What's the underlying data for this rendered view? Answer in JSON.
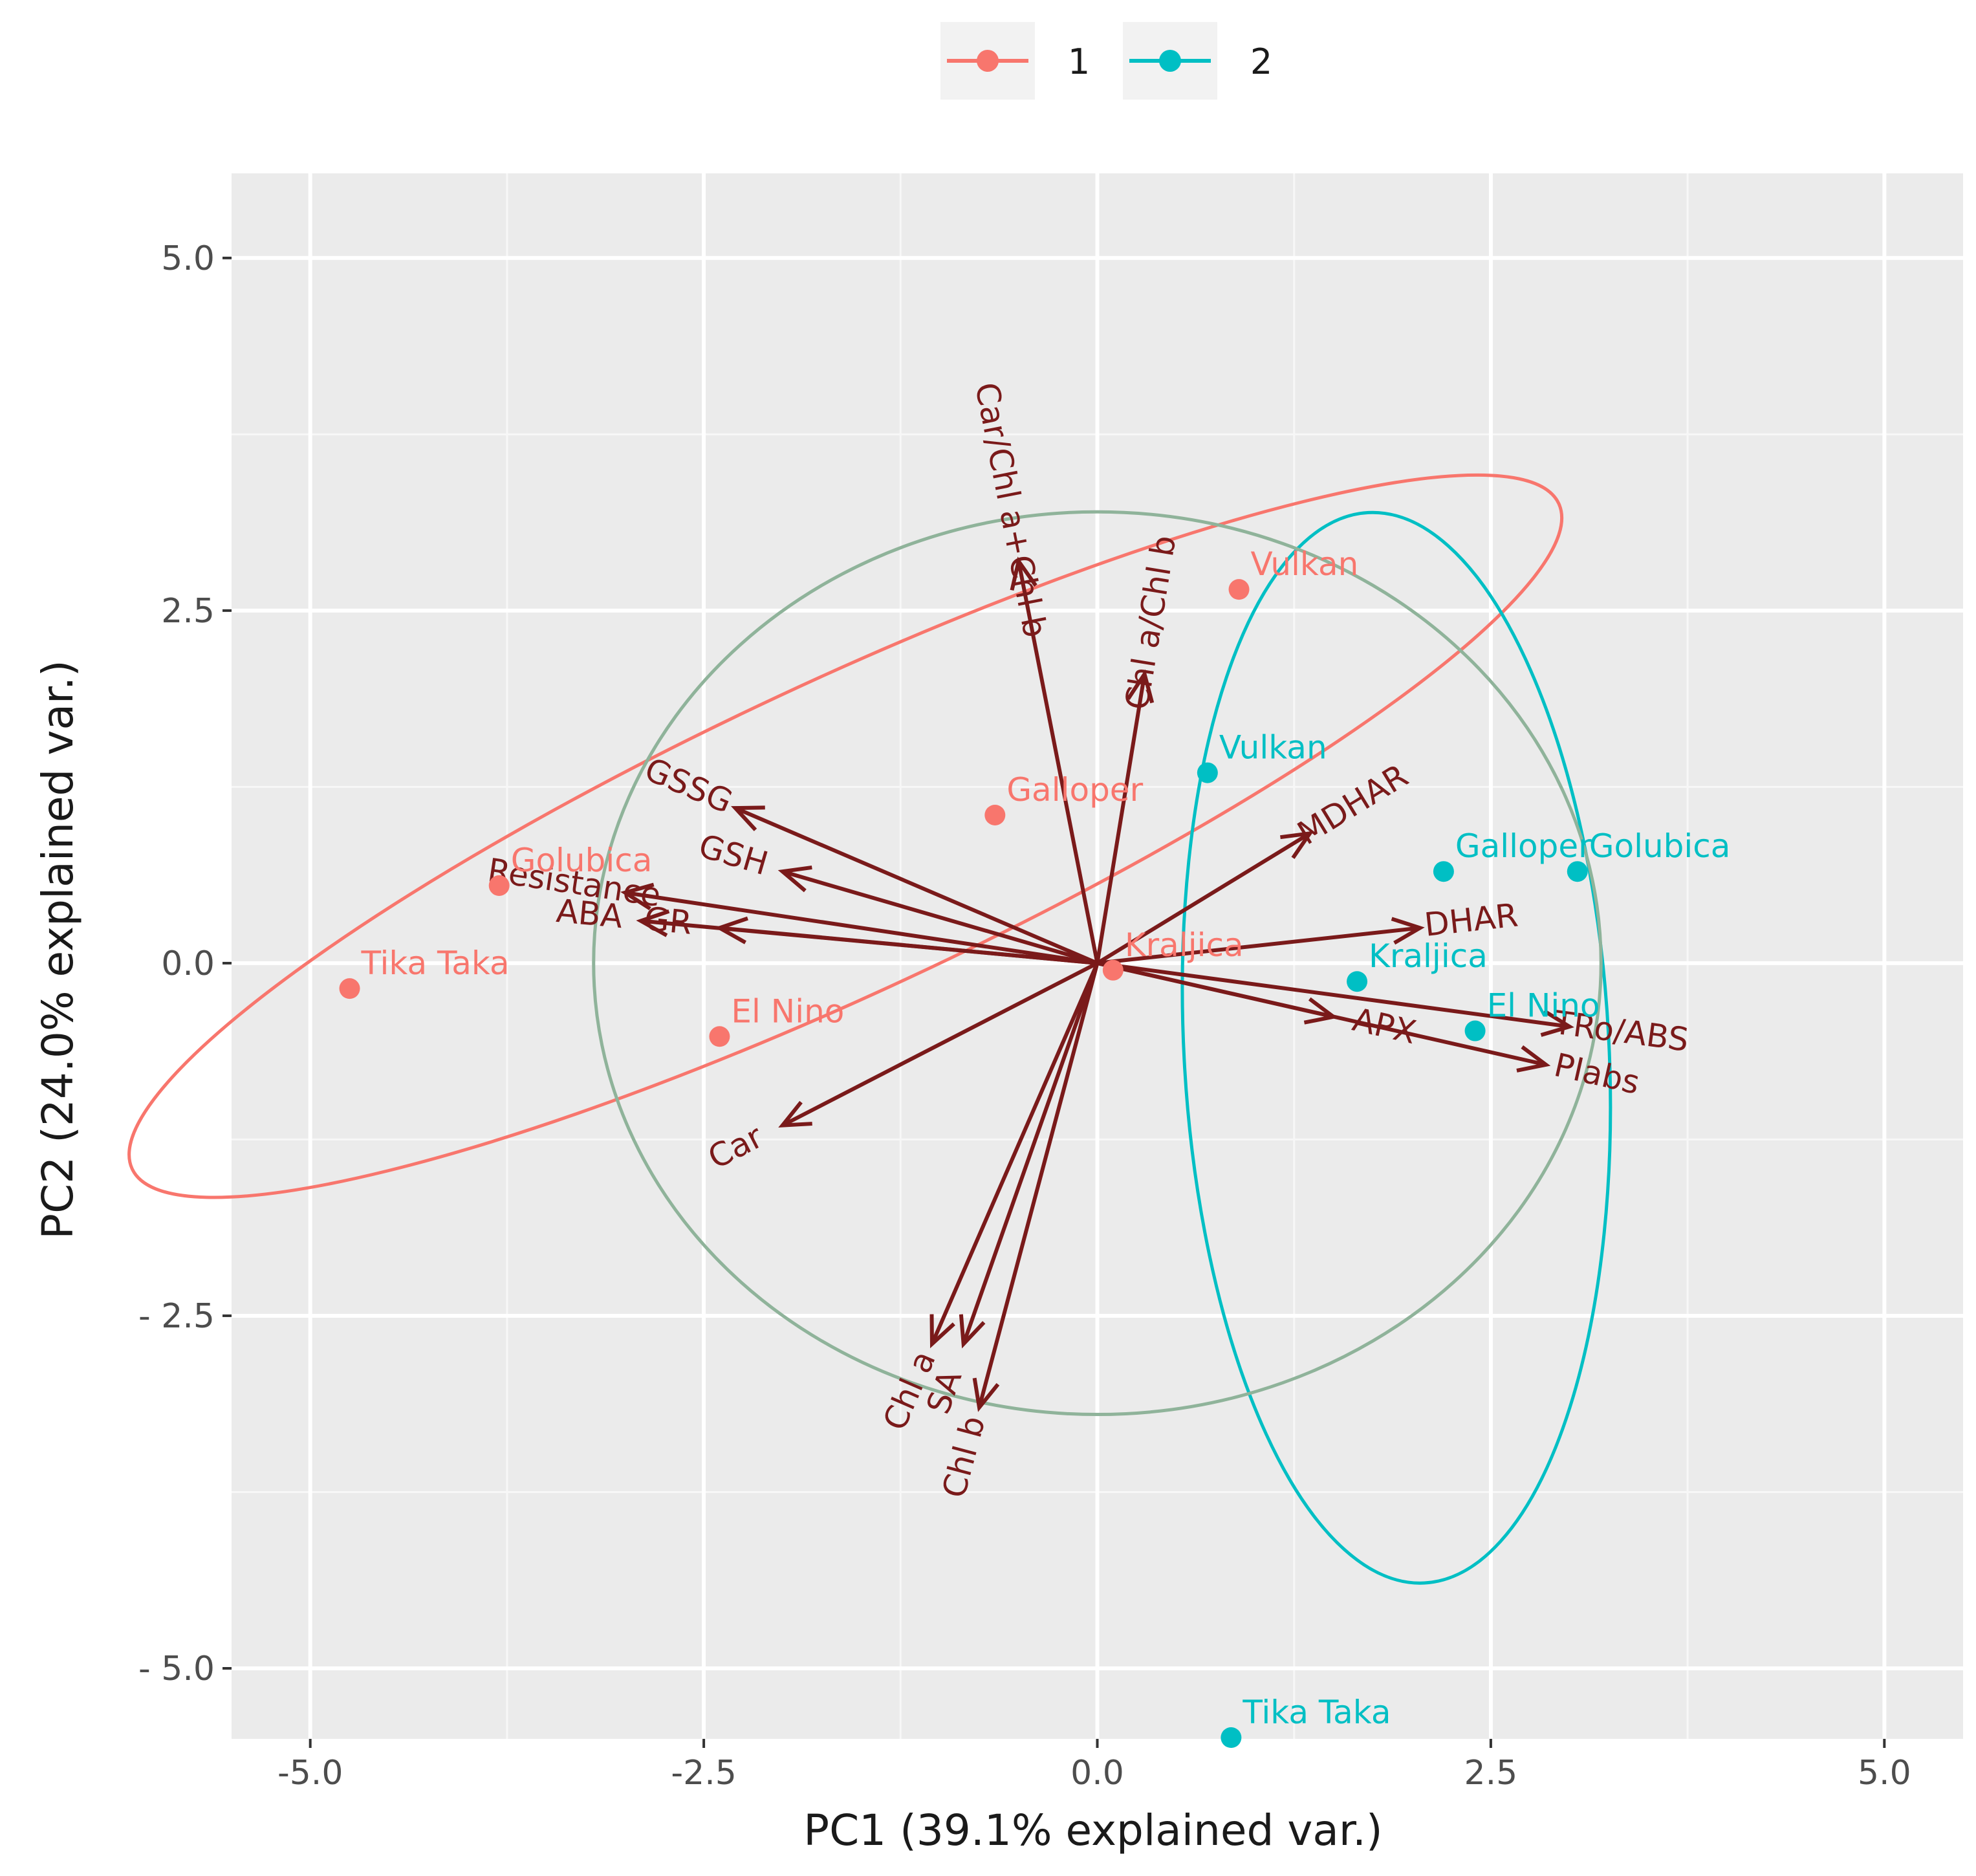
{
  "chart_data": {
    "type": "scatter",
    "subtype": "pca-biplot",
    "xlabel": "PC1 (39.1% explained var.)",
    "ylabel": "PC2 (24.0% explained var.)",
    "xlim": [
      -5.5,
      5.5
    ],
    "ylim": [
      -5.5,
      5.6
    ],
    "xticks": [
      -5.0,
      -2.5,
      0.0,
      2.5,
      5.0
    ],
    "xtick_labels": [
      "-5.0",
      "-2.5",
      "0.0",
      "2.5",
      "5.0"
    ],
    "yticks": [
      5.0,
      2.5,
      0.0,
      -2.5,
      -5.0
    ],
    "ytick_labels": [
      "5.0",
      "2.5",
      "0.0",
      "- 2.5",
      "- 5.0"
    ],
    "grid": true,
    "legend": {
      "placement": "top-center",
      "entries": [
        {
          "label": "1",
          "color": "#f8766d"
        },
        {
          "label": "2",
          "color": "#00bfc4"
        }
      ]
    },
    "series": [
      {
        "name": "1",
        "color": "#f8766d",
        "points": [
          {
            "label": "Vulkan",
            "x": 0.9,
            "y": 2.65
          },
          {
            "label": "Galloper",
            "x": -0.65,
            "y": 1.05
          },
          {
            "label": "Golubica",
            "x": -3.8,
            "y": 0.55
          },
          {
            "label": "Kraljica",
            "x": 0.1,
            "y": -0.05
          },
          {
            "label": "Tika Taka",
            "x": -4.75,
            "y": -0.18
          },
          {
            "label": "El Nino",
            "x": -2.4,
            "y": -0.52
          }
        ]
      },
      {
        "name": "2",
        "color": "#00bfc4",
        "points": [
          {
            "label": "Vulkan",
            "x": 0.7,
            "y": 1.35
          },
          {
            "label": "Galloper",
            "x": 2.2,
            "y": 0.65
          },
          {
            "label": "Golubica",
            "x": 3.05,
            "y": 0.65
          },
          {
            "label": "Kraljica",
            "x": 1.65,
            "y": -0.13
          },
          {
            "label": "El Nino",
            "x": 2.4,
            "y": -0.48
          },
          {
            "label": "Tika Taka",
            "x": 0.85,
            "y": -5.5
          }
        ]
      }
    ],
    "loadings": [
      {
        "label": "Car/Chl a+Chl b",
        "x": -0.5,
        "y": 2.85
      },
      {
        "label": "Chl a/Chl b",
        "x": 0.3,
        "y": 2.05
      },
      {
        "label": "GSSG",
        "x": -2.3,
        "y": 1.1
      },
      {
        "label": "GSH",
        "x": -2.0,
        "y": 0.65
      },
      {
        "label": "Resistance",
        "x": -3.0,
        "y": 0.5
      },
      {
        "label": "ABA",
        "x": -2.9,
        "y": 0.3
      },
      {
        "label": "GR",
        "x": -2.4,
        "y": 0.25
      },
      {
        "label": "MDHAR",
        "x": 1.35,
        "y": 0.92
      },
      {
        "label": "DHAR",
        "x": 2.05,
        "y": 0.25
      },
      {
        "label": "APX",
        "x": 1.5,
        "y": -0.38
      },
      {
        "label": "TRo/ABS",
        "x": 3.0,
        "y": -0.45
      },
      {
        "label": "PIabs",
        "x": 2.85,
        "y": -0.72
      },
      {
        "label": "Car",
        "x": -2.0,
        "y": -1.15
      },
      {
        "label": "Chl a",
        "x": -1.05,
        "y": -2.7
      },
      {
        "label": "SA",
        "x": -0.85,
        "y": -2.7
      },
      {
        "label": "Chl b",
        "x": -0.75,
        "y": -3.15
      }
    ],
    "ellipses": [
      {
        "group": "1",
        "color": "#f8766d",
        "cx": -1.6,
        "cy": 0.9,
        "rx": 5.0,
        "ry": 1.1,
        "angle_deg": 25
      },
      {
        "group": "2",
        "color": "#00bfc4",
        "cx": 1.9,
        "cy": -0.6,
        "rx": 1.35,
        "ry": 3.8,
        "angle_deg": 3
      },
      {
        "group": "correlation-circle",
        "color": "#8fb39a",
        "cx": 0.0,
        "cy": 0.0,
        "rx": 3.2,
        "ry": 3.2,
        "angle_deg": 0
      }
    ]
  }
}
